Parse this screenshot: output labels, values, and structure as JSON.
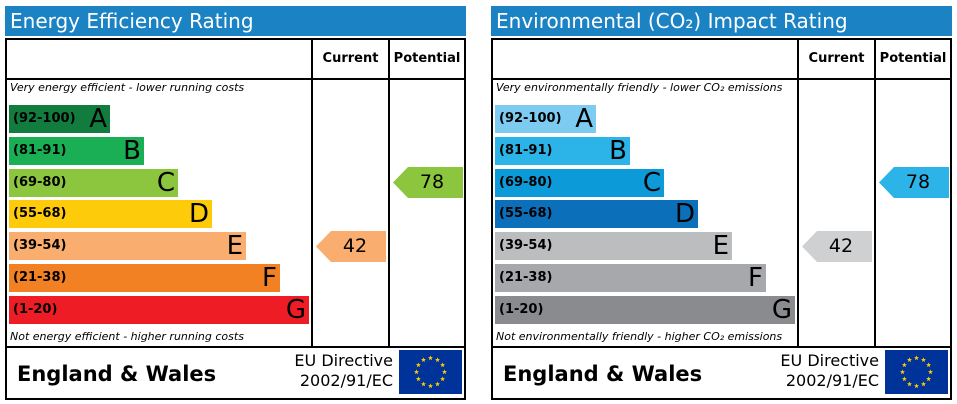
{
  "chart_data": [
    {
      "type": "table",
      "title": "Energy Efficiency Rating",
      "columns": [
        "Current",
        "Potential"
      ],
      "top_note": "Very energy efficient - lower running costs",
      "bottom_note": "Not energy efficient - higher running costs",
      "bands": [
        {
          "range": "(92-100)",
          "letter": "A",
          "color": "#127c3e",
          "text_color": "#000000"
        },
        {
          "range": "(81-91)",
          "letter": "B",
          "color": "#1aaf55",
          "text_color": "#000000"
        },
        {
          "range": "(69-80)",
          "letter": "C",
          "color": "#8cc63f",
          "text_color": "#000000"
        },
        {
          "range": "(55-68)",
          "letter": "D",
          "color": "#fecb0a",
          "text_color": "#000000"
        },
        {
          "range": "(39-54)",
          "letter": "E",
          "color": "#f9ad6e",
          "text_color": "#000000"
        },
        {
          "range": "(21-38)",
          "letter": "F",
          "color": "#f28123",
          "text_color": "#000000"
        },
        {
          "range": "(1-20)",
          "letter": "G",
          "color": "#ee1d25",
          "text_color": "#000000"
        }
      ],
      "current": {
        "value": 42,
        "color": "#f9ad6e"
      },
      "potential": {
        "value": 78,
        "color": "#8cc63f"
      },
      "footer": {
        "country": "England & Wales",
        "directive_line1": "EU Directive",
        "directive_line2": "2002/91/EC"
      }
    },
    {
      "type": "table",
      "title": "Environmental (CO₂) Impact Rating",
      "columns": [
        "Current",
        "Potential"
      ],
      "top_note": "Very environmentally friendly - lower CO₂ emissions",
      "bottom_note": "Not environmentally friendly - higher CO₂ emissions",
      "bands": [
        {
          "range": "(92-100)",
          "letter": "A",
          "color": "#7dcbf1",
          "text_color": "#000000"
        },
        {
          "range": "(81-91)",
          "letter": "B",
          "color": "#2cb4e8",
          "text_color": "#000000"
        },
        {
          "range": "(69-80)",
          "letter": "C",
          "color": "#0d9ad8",
          "text_color": "#000000"
        },
        {
          "range": "(55-68)",
          "letter": "D",
          "color": "#0b6fba",
          "text_color": "#000000"
        },
        {
          "range": "(39-54)",
          "letter": "E",
          "color": "#bbbdbf",
          "text_color": "#000000"
        },
        {
          "range": "(21-38)",
          "letter": "F",
          "color": "#a6a8ab",
          "text_color": "#000000"
        },
        {
          "range": "(1-20)",
          "letter": "G",
          "color": "#898b8e",
          "text_color": "#000000"
        }
      ],
      "current": {
        "value": 42,
        "color": "#cfd0d2"
      },
      "potential": {
        "value": 78,
        "color": "#2cb4e8"
      },
      "footer": {
        "country": "England & Wales",
        "directive_line1": "EU Directive",
        "directive_line2": "2002/91/EC"
      }
    }
  ],
  "eu_flag": {
    "icon": "eu-flag-icon",
    "background": "#003399",
    "star_color": "#ffcc00"
  }
}
